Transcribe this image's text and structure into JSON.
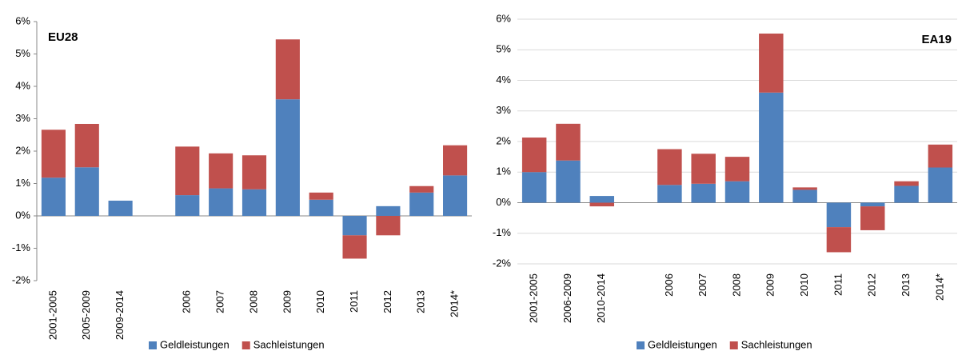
{
  "chart_data": [
    {
      "type": "stacked-bar",
      "title": "EU28",
      "categories": [
        "2001-2005",
        "2005-2009",
        "2009-2014",
        null,
        "2006",
        "2007",
        "2008",
        "2009",
        "2010",
        "2011",
        "2012",
        "2013",
        "2014*"
      ],
      "series": [
        {
          "name": "Geldleistungen",
          "color": "#4f81bd",
          "values": [
            1.18,
            1.5,
            0.47,
            null,
            0.64,
            0.85,
            0.82,
            3.6,
            0.5,
            -0.6,
            0.3,
            0.72,
            1.25
          ]
        },
        {
          "name": "Sachleistungen",
          "color": "#c0504d",
          "values": [
            1.48,
            1.34,
            0,
            null,
            1.5,
            1.08,
            1.05,
            1.85,
            0.22,
            -0.72,
            -0.6,
            0.2,
            0.93
          ]
        }
      ],
      "ylim": [
        -2,
        6
      ],
      "yticks": [
        {
          "value": -2,
          "label": "-2%"
        },
        {
          "value": -1,
          "label": "-1%"
        },
        {
          "value": 0,
          "label": "0%"
        },
        {
          "value": 1,
          "label": "1%"
        },
        {
          "value": 2,
          "label": "2%"
        },
        {
          "value": 3,
          "label": "3%"
        },
        {
          "value": 4,
          "label": "4%"
        },
        {
          "value": 5,
          "label": "5%"
        },
        {
          "value": 6,
          "label": "6%"
        }
      ],
      "grid": false
    },
    {
      "type": "stacked-bar",
      "title": "EA19",
      "categories": [
        "2001-2005",
        "2006-2009",
        "2010-2014",
        null,
        "2006",
        "2007",
        "2008",
        "2009",
        "2010",
        "2011",
        "2012",
        "2013",
        "2014*"
      ],
      "series": [
        {
          "name": "Geldleistungen",
          "color": "#4f81bd",
          "values": [
            1.0,
            1.38,
            0.22,
            null,
            0.58,
            0.62,
            0.7,
            3.6,
            0.42,
            -0.8,
            -0.12,
            0.55,
            1.15
          ]
        },
        {
          "name": "Sachleistungen",
          "color": "#c0504d",
          "values": [
            1.13,
            1.2,
            -0.12,
            null,
            1.17,
            0.98,
            0.8,
            1.93,
            0.08,
            -0.82,
            -0.78,
            0.15,
            0.75
          ]
        }
      ],
      "ylim": [
        -2,
        6
      ],
      "yticks": [
        {
          "value": -2,
          "label": "-2%"
        },
        {
          "value": -1,
          "label": "-1%"
        },
        {
          "value": 0,
          "label": "0%"
        },
        {
          "value": 1,
          "label": "1%"
        },
        {
          "value": 2,
          "label": "2%"
        },
        {
          "value": 3,
          "label": "3%"
        },
        {
          "value": 4,
          "label": "4%"
        },
        {
          "value": 5,
          "label": "5%"
        },
        {
          "value": 6,
          "label": "6%"
        }
      ],
      "grid": true
    }
  ]
}
